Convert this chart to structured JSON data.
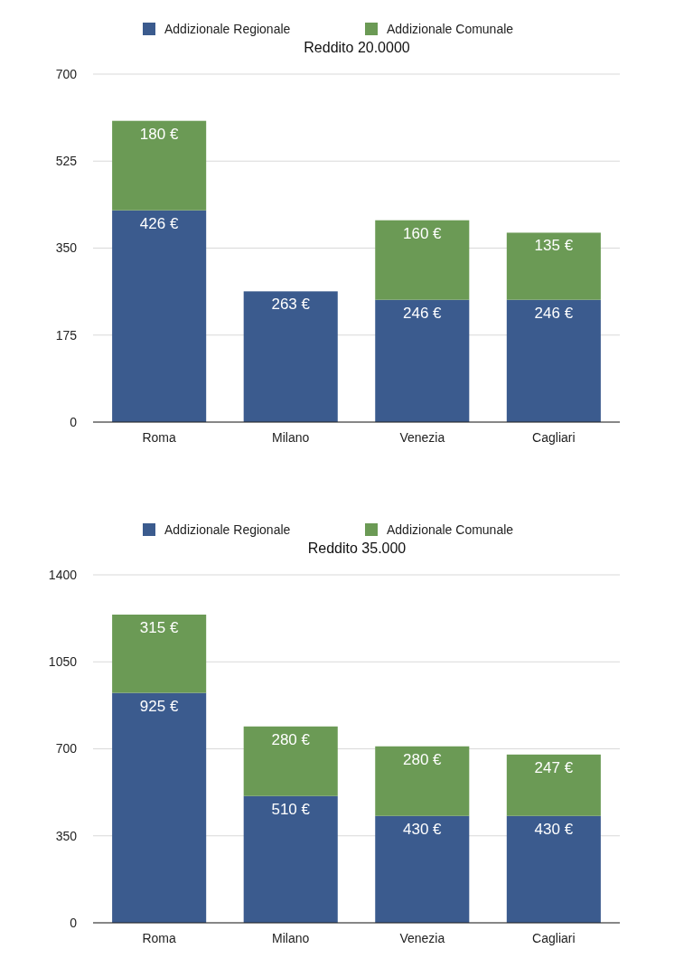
{
  "chart_data": [
    {
      "type": "bar",
      "title": "Reddito 20.0000",
      "categories": [
        "Roma",
        "Milano",
        "Venezia",
        "Cagliari"
      ],
      "stacked": true,
      "legend": "top",
      "grid": "y",
      "ylim": [
        0,
        700
      ],
      "yticks": [
        0,
        175,
        350,
        525,
        700
      ],
      "series": [
        {
          "name": "Addizionale Regionale",
          "color": "#3b5b8e",
          "values": [
            426,
            263,
            246,
            246
          ],
          "value_labels": [
            "426 €",
            "263 €",
            "246 €",
            "246 €"
          ]
        },
        {
          "name": "Addizionale Comunale",
          "color": "#6b9a55",
          "values": [
            180,
            null,
            160,
            135
          ],
          "value_labels": [
            "180 €",
            null,
            "160 €",
            "135 €"
          ]
        }
      ]
    },
    {
      "type": "bar",
      "title": "Reddito 35.000",
      "categories": [
        "Roma",
        "Milano",
        "Venezia",
        "Cagliari"
      ],
      "stacked": true,
      "legend": "top",
      "grid": "y",
      "ylim": [
        0,
        1400
      ],
      "yticks": [
        0,
        350,
        700,
        1050,
        1400
      ],
      "series": [
        {
          "name": "Addizionale Regionale",
          "color": "#3b5b8e",
          "values": [
            925,
            510,
            430,
            430
          ],
          "value_labels": [
            "925 €",
            "510 €",
            "430 €",
            "430 €"
          ]
        },
        {
          "name": "Addizionale Comunale",
          "color": "#6b9a55",
          "values": [
            315,
            280,
            280,
            247
          ],
          "value_labels": [
            "315 €",
            "280 €",
            "280 €",
            "247 €"
          ]
        }
      ]
    }
  ]
}
